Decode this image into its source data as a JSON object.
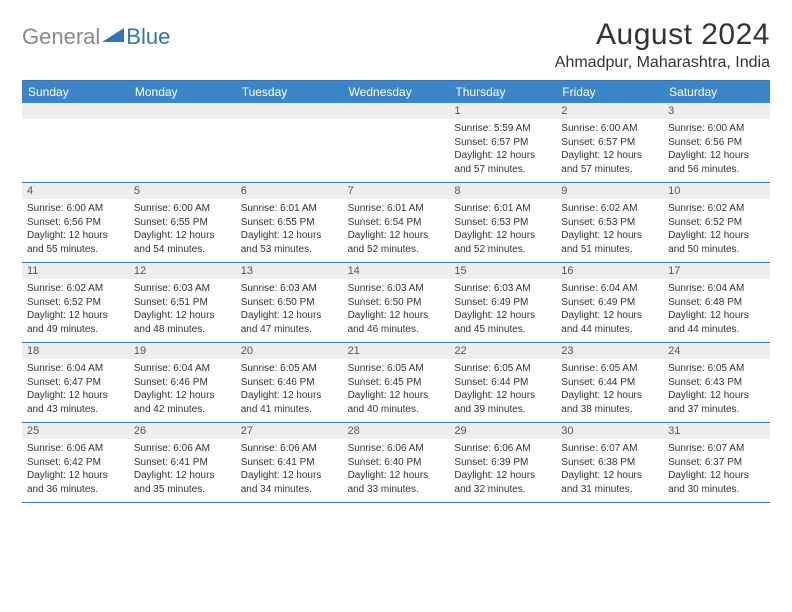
{
  "logo": {
    "text_gray": "General",
    "text_blue": "Blue",
    "icon_color": "#2f76b8"
  },
  "title": "August 2024",
  "location": "Ahmadpur, Maharashtra, India",
  "colors": {
    "header_bg": "#3b86c8",
    "border": "#2f76b8",
    "strip_bg": "#eeeeee",
    "text": "#333333",
    "logo_gray": "#8a8a8a"
  },
  "day_names": [
    "Sunday",
    "Monday",
    "Tuesday",
    "Wednesday",
    "Thursday",
    "Friday",
    "Saturday"
  ],
  "weeks": [
    [
      {
        "date": "",
        "sunrise": "",
        "sunset": "",
        "daylight": ""
      },
      {
        "date": "",
        "sunrise": "",
        "sunset": "",
        "daylight": ""
      },
      {
        "date": "",
        "sunrise": "",
        "sunset": "",
        "daylight": ""
      },
      {
        "date": "",
        "sunrise": "",
        "sunset": "",
        "daylight": ""
      },
      {
        "date": "1",
        "sunrise": "Sunrise: 5:59 AM",
        "sunset": "Sunset: 6:57 PM",
        "daylight": "Daylight: 12 hours and 57 minutes."
      },
      {
        "date": "2",
        "sunrise": "Sunrise: 6:00 AM",
        "sunset": "Sunset: 6:57 PM",
        "daylight": "Daylight: 12 hours and 57 minutes."
      },
      {
        "date": "3",
        "sunrise": "Sunrise: 6:00 AM",
        "sunset": "Sunset: 6:56 PM",
        "daylight": "Daylight: 12 hours and 56 minutes."
      }
    ],
    [
      {
        "date": "4",
        "sunrise": "Sunrise: 6:00 AM",
        "sunset": "Sunset: 6:56 PM",
        "daylight": "Daylight: 12 hours and 55 minutes."
      },
      {
        "date": "5",
        "sunrise": "Sunrise: 6:00 AM",
        "sunset": "Sunset: 6:55 PM",
        "daylight": "Daylight: 12 hours and 54 minutes."
      },
      {
        "date": "6",
        "sunrise": "Sunrise: 6:01 AM",
        "sunset": "Sunset: 6:55 PM",
        "daylight": "Daylight: 12 hours and 53 minutes."
      },
      {
        "date": "7",
        "sunrise": "Sunrise: 6:01 AM",
        "sunset": "Sunset: 6:54 PM",
        "daylight": "Daylight: 12 hours and 52 minutes."
      },
      {
        "date": "8",
        "sunrise": "Sunrise: 6:01 AM",
        "sunset": "Sunset: 6:53 PM",
        "daylight": "Daylight: 12 hours and 52 minutes."
      },
      {
        "date": "9",
        "sunrise": "Sunrise: 6:02 AM",
        "sunset": "Sunset: 6:53 PM",
        "daylight": "Daylight: 12 hours and 51 minutes."
      },
      {
        "date": "10",
        "sunrise": "Sunrise: 6:02 AM",
        "sunset": "Sunset: 6:52 PM",
        "daylight": "Daylight: 12 hours and 50 minutes."
      }
    ],
    [
      {
        "date": "11",
        "sunrise": "Sunrise: 6:02 AM",
        "sunset": "Sunset: 6:52 PM",
        "daylight": "Daylight: 12 hours and 49 minutes."
      },
      {
        "date": "12",
        "sunrise": "Sunrise: 6:03 AM",
        "sunset": "Sunset: 6:51 PM",
        "daylight": "Daylight: 12 hours and 48 minutes."
      },
      {
        "date": "13",
        "sunrise": "Sunrise: 6:03 AM",
        "sunset": "Sunset: 6:50 PM",
        "daylight": "Daylight: 12 hours and 47 minutes."
      },
      {
        "date": "14",
        "sunrise": "Sunrise: 6:03 AM",
        "sunset": "Sunset: 6:50 PM",
        "daylight": "Daylight: 12 hours and 46 minutes."
      },
      {
        "date": "15",
        "sunrise": "Sunrise: 6:03 AM",
        "sunset": "Sunset: 6:49 PM",
        "daylight": "Daylight: 12 hours and 45 minutes."
      },
      {
        "date": "16",
        "sunrise": "Sunrise: 6:04 AM",
        "sunset": "Sunset: 6:49 PM",
        "daylight": "Daylight: 12 hours and 44 minutes."
      },
      {
        "date": "17",
        "sunrise": "Sunrise: 6:04 AM",
        "sunset": "Sunset: 6:48 PM",
        "daylight": "Daylight: 12 hours and 44 minutes."
      }
    ],
    [
      {
        "date": "18",
        "sunrise": "Sunrise: 6:04 AM",
        "sunset": "Sunset: 6:47 PM",
        "daylight": "Daylight: 12 hours and 43 minutes."
      },
      {
        "date": "19",
        "sunrise": "Sunrise: 6:04 AM",
        "sunset": "Sunset: 6:46 PM",
        "daylight": "Daylight: 12 hours and 42 minutes."
      },
      {
        "date": "20",
        "sunrise": "Sunrise: 6:05 AM",
        "sunset": "Sunset: 6:46 PM",
        "daylight": "Daylight: 12 hours and 41 minutes."
      },
      {
        "date": "21",
        "sunrise": "Sunrise: 6:05 AM",
        "sunset": "Sunset: 6:45 PM",
        "daylight": "Daylight: 12 hours and 40 minutes."
      },
      {
        "date": "22",
        "sunrise": "Sunrise: 6:05 AM",
        "sunset": "Sunset: 6:44 PM",
        "daylight": "Daylight: 12 hours and 39 minutes."
      },
      {
        "date": "23",
        "sunrise": "Sunrise: 6:05 AM",
        "sunset": "Sunset: 6:44 PM",
        "daylight": "Daylight: 12 hours and 38 minutes."
      },
      {
        "date": "24",
        "sunrise": "Sunrise: 6:05 AM",
        "sunset": "Sunset: 6:43 PM",
        "daylight": "Daylight: 12 hours and 37 minutes."
      }
    ],
    [
      {
        "date": "25",
        "sunrise": "Sunrise: 6:06 AM",
        "sunset": "Sunset: 6:42 PM",
        "daylight": "Daylight: 12 hours and 36 minutes."
      },
      {
        "date": "26",
        "sunrise": "Sunrise: 6:06 AM",
        "sunset": "Sunset: 6:41 PM",
        "daylight": "Daylight: 12 hours and 35 minutes."
      },
      {
        "date": "27",
        "sunrise": "Sunrise: 6:06 AM",
        "sunset": "Sunset: 6:41 PM",
        "daylight": "Daylight: 12 hours and 34 minutes."
      },
      {
        "date": "28",
        "sunrise": "Sunrise: 6:06 AM",
        "sunset": "Sunset: 6:40 PM",
        "daylight": "Daylight: 12 hours and 33 minutes."
      },
      {
        "date": "29",
        "sunrise": "Sunrise: 6:06 AM",
        "sunset": "Sunset: 6:39 PM",
        "daylight": "Daylight: 12 hours and 32 minutes."
      },
      {
        "date": "30",
        "sunrise": "Sunrise: 6:07 AM",
        "sunset": "Sunset: 6:38 PM",
        "daylight": "Daylight: 12 hours and 31 minutes."
      },
      {
        "date": "31",
        "sunrise": "Sunrise: 6:07 AM",
        "sunset": "Sunset: 6:37 PM",
        "daylight": "Daylight: 12 hours and 30 minutes."
      }
    ]
  ]
}
